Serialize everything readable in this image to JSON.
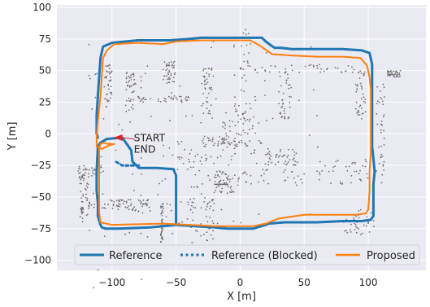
{
  "chart_data": {
    "type": "line",
    "title": "",
    "xlabel": "X [m]",
    "ylabel": "Y [m]",
    "xlim": [
      -143,
      145
    ],
    "ylim": [
      -108,
      102
    ],
    "xticks": [
      -100,
      -50,
      0,
      50,
      100
    ],
    "xtick_labels": [
      "−100",
      "−50",
      "0",
      "50",
      "100"
    ],
    "yticks": [
      100,
      75,
      50,
      25,
      0,
      -25,
      -50,
      -75,
      -100
    ],
    "ytick_labels": [
      "100",
      "75",
      "50",
      "25",
      "0",
      "−25",
      "−50",
      "−75",
      "−100"
    ],
    "grid": true,
    "legend_position": "bottom",
    "colors": {
      "background": "#eaeaf2",
      "reference": "#1f77b4",
      "proposed": "#ff7f0e",
      "map_points": "#707070",
      "start_marker": "#d62728"
    },
    "annotations": [
      {
        "text": "START",
        "x": -83,
        "y": -6
      },
      {
        "text": "END",
        "x": -83,
        "y": -15
      }
    ],
    "start_arrow": {
      "x": -95,
      "y": -3
    },
    "series": [
      {
        "name": "Reference",
        "style": "solid",
        "points": [
          [
            -22,
            -74
          ],
          [
            -50,
            -72
          ],
          [
            -50,
            -48
          ],
          [
            -50,
            -33
          ],
          [
            -52,
            -28
          ],
          [
            -65,
            -27
          ],
          [
            -79,
            -27
          ],
          [
            -84,
            -22
          ],
          [
            -85,
            -13
          ],
          [
            -92,
            -3
          ],
          [
            -104,
            -4
          ],
          [
            -109,
            -7
          ],
          [
            -111,
            -10
          ],
          [
            -112,
            -30
          ],
          [
            -112,
            -45
          ],
          [
            -111,
            -55
          ],
          [
            -111,
            -65
          ],
          [
            -109,
            -72
          ],
          [
            -108,
            -74
          ],
          [
            -105,
            -75
          ],
          [
            -95,
            -75
          ],
          [
            -70,
            -74
          ],
          [
            -50,
            -72
          ],
          [
            -30,
            -73
          ],
          [
            -10,
            -75
          ],
          [
            10,
            -75
          ],
          [
            20,
            -72
          ],
          [
            22,
            -71
          ],
          [
            35,
            -70
          ],
          [
            60,
            -70
          ],
          [
            80,
            -69
          ],
          [
            95,
            -69
          ],
          [
            102,
            -68
          ],
          [
            104,
            -65
          ],
          [
            104,
            -50
          ],
          [
            104,
            -40
          ],
          [
            105,
            -30
          ],
          [
            104,
            -20
          ],
          [
            103,
            -10
          ],
          [
            103,
            0
          ],
          [
            103,
            20
          ],
          [
            103,
            40
          ],
          [
            103,
            55
          ],
          [
            101,
            64
          ],
          [
            95,
            66
          ],
          [
            80,
            67
          ],
          [
            60,
            67
          ],
          [
            40,
            67
          ],
          [
            32,
            68
          ],
          [
            27,
            68
          ],
          [
            24,
            70
          ],
          [
            20,
            73
          ],
          [
            17,
            76
          ],
          [
            -10,
            76
          ],
          [
            -30,
            76
          ],
          [
            -40,
            75
          ],
          [
            -55,
            74
          ],
          [
            -80,
            74
          ],
          [
            -100,
            72
          ],
          [
            -107,
            69
          ],
          [
            -109,
            60
          ],
          [
            -110,
            45
          ],
          [
            -111,
            30
          ],
          [
            -112,
            15
          ],
          [
            -112,
            0
          ],
          [
            -111,
            -3
          ]
        ]
      },
      {
        "name": "Reference (Blocked)",
        "style": "dotted",
        "points": [
          [
            -79,
            -25
          ],
          [
            -86,
            -25
          ],
          [
            -92,
            -25
          ],
          [
            -97,
            -22
          ]
        ]
      },
      {
        "name": "Proposed",
        "style": "solid",
        "points": [
          [
            -100,
            -8
          ],
          [
            -103,
            -8
          ],
          [
            -107,
            -7
          ],
          [
            -109,
            -8
          ],
          [
            -110,
            -11
          ],
          [
            -110,
            -30
          ],
          [
            -110,
            -50
          ],
          [
            -110,
            -62
          ],
          [
            -109,
            -70
          ],
          [
            -100,
            -72
          ],
          [
            -60,
            -71
          ],
          [
            -40,
            -72
          ],
          [
            -20,
            -73
          ],
          [
            0,
            -73
          ],
          [
            10,
            -73
          ],
          [
            20,
            -71
          ],
          [
            30,
            -67
          ],
          [
            50,
            -64
          ],
          [
            70,
            -64
          ],
          [
            90,
            -64
          ],
          [
            98,
            -63
          ],
          [
            100,
            -60
          ],
          [
            101,
            -45
          ],
          [
            101,
            -30
          ],
          [
            102,
            -15
          ],
          [
            102,
            0
          ],
          [
            102,
            20
          ],
          [
            102,
            35
          ],
          [
            101,
            45
          ],
          [
            99,
            54
          ],
          [
            94,
            60
          ],
          [
            80,
            61
          ],
          [
            60,
            61
          ],
          [
            40,
            62
          ],
          [
            25,
            63
          ],
          [
            15,
            70
          ],
          [
            8,
            74
          ],
          [
            -10,
            74
          ],
          [
            -30,
            74
          ],
          [
            -50,
            73
          ],
          [
            -60,
            71
          ],
          [
            -80,
            72
          ],
          [
            -98,
            71
          ],
          [
            -104,
            66
          ],
          [
            -107,
            60
          ],
          [
            -108,
            45
          ],
          [
            -109,
            30
          ],
          [
            -110,
            20
          ],
          [
            -111,
            10
          ],
          [
            -112,
            -2
          ],
          [
            -112,
            -10
          ],
          [
            -108,
            -12
          ],
          [
            -102,
            -9
          ],
          [
            -98,
            -8
          ]
        ]
      }
    ]
  }
}
